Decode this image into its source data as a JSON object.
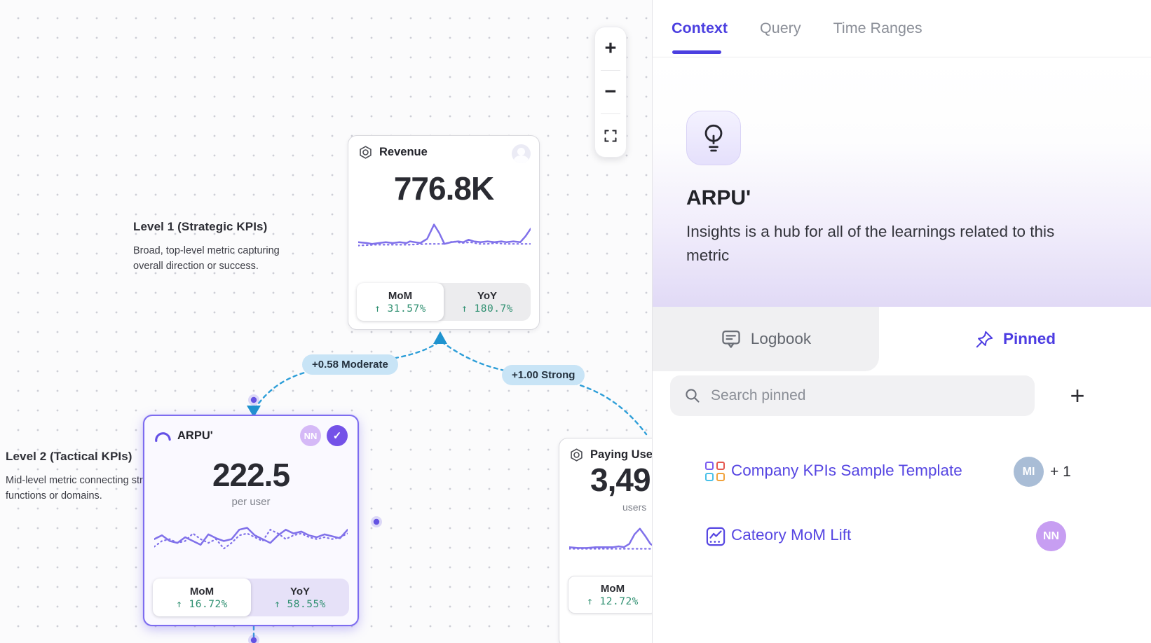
{
  "colors": {
    "accent_indigo": "#4b3fe0",
    "link_purple": "#5646e2",
    "sparkline_purple": "#8071ea",
    "edge_blue": "#2d9ed8",
    "edge_badge_bg": "#c8e4f6",
    "positive_green": "#2e8f70",
    "selected_card_border": "#7d6cf0"
  },
  "canvas": {
    "zoom_toolbar": {
      "zoom_in": "+",
      "zoom_out": "−",
      "fit_icon": "fullscreen-corners"
    },
    "levels": [
      {
        "title": "Level 1 (Strategic KPIs)",
        "description": "Broad, top-level metric capturing overall direction or success."
      },
      {
        "title": "Level 2 (Tactical KPIs)",
        "description": "Mid-level metric connecting strategy to functions or domains."
      }
    ],
    "edges": [
      {
        "label": "+0.58 Moderate"
      },
      {
        "label": "+1.00 Strong"
      }
    ],
    "cards": {
      "revenue": {
        "title": "Revenue",
        "value": "776.8K",
        "mom_label": "MoM",
        "mom_value": "↑ 31.57%",
        "yoy_label": "YoY",
        "yoy_value": "↑ 180.7%"
      },
      "arpu": {
        "title": "ARPU'",
        "value": "222.5",
        "unit": "per user",
        "owner_badge": "NN",
        "verified_icon": "✓",
        "mom_label": "MoM",
        "mom_value": "↑ 16.72%",
        "yoy_label": "YoY",
        "yoy_value": "↑ 58.55%"
      },
      "paying": {
        "title": "Paying Users'",
        "value": "3,49",
        "unit": "users",
        "mom_label": "MoM",
        "mom_value": "↑ 12.72%"
      }
    },
    "sparklines": {
      "revenue_solid": [
        [
          0,
          29
        ],
        [
          5,
          30
        ],
        [
          8,
          31
        ],
        [
          12,
          30
        ],
        [
          16,
          29
        ],
        [
          20,
          30
        ],
        [
          24,
          29
        ],
        [
          28,
          30
        ],
        [
          30,
          28
        ],
        [
          33,
          29
        ],
        [
          36,
          30
        ],
        [
          40,
          25
        ],
        [
          44,
          8
        ],
        [
          47,
          18
        ],
        [
          50,
          31
        ],
        [
          54,
          29
        ],
        [
          58,
          28
        ],
        [
          61,
          29
        ],
        [
          64,
          26
        ],
        [
          67,
          28
        ],
        [
          71,
          29
        ],
        [
          75,
          28
        ],
        [
          79,
          29
        ],
        [
          83,
          28
        ],
        [
          86,
          29
        ],
        [
          90,
          28
        ],
        [
          94,
          29
        ],
        [
          97,
          22
        ],
        [
          100,
          13
        ]
      ],
      "revenue_dotted": [
        [
          0,
          33
        ],
        [
          10,
          32
        ],
        [
          20,
          32
        ],
        [
          30,
          32
        ],
        [
          40,
          31
        ],
        [
          50,
          31
        ],
        [
          55,
          28
        ],
        [
          60,
          30
        ],
        [
          65,
          29
        ],
        [
          70,
          31
        ],
        [
          75,
          31
        ],
        [
          80,
          30
        ],
        [
          85,
          31
        ],
        [
          90,
          31
        ],
        [
          95,
          31
        ],
        [
          100,
          31
        ]
      ],
      "arpu_solid": [
        [
          0,
          22
        ],
        [
          4,
          18
        ],
        [
          8,
          24
        ],
        [
          12,
          26
        ],
        [
          16,
          20
        ],
        [
          20,
          24
        ],
        [
          24,
          28
        ],
        [
          28,
          17
        ],
        [
          32,
          21
        ],
        [
          36,
          24
        ],
        [
          40,
          22
        ],
        [
          44,
          12
        ],
        [
          48,
          10
        ],
        [
          52,
          18
        ],
        [
          56,
          22
        ],
        [
          60,
          26
        ],
        [
          64,
          18
        ],
        [
          68,
          12
        ],
        [
          72,
          16
        ],
        [
          76,
          14
        ],
        [
          80,
          18
        ],
        [
          84,
          20
        ],
        [
          88,
          17
        ],
        [
          92,
          19
        ],
        [
          96,
          21
        ],
        [
          100,
          12
        ]
      ],
      "arpu_dotted": [
        [
          0,
          30
        ],
        [
          4,
          24
        ],
        [
          8,
          22
        ],
        [
          12,
          26
        ],
        [
          16,
          24
        ],
        [
          20,
          16
        ],
        [
          24,
          22
        ],
        [
          28,
          26
        ],
        [
          32,
          22
        ],
        [
          36,
          32
        ],
        [
          40,
          26
        ],
        [
          44,
          18
        ],
        [
          48,
          16
        ],
        [
          52,
          20
        ],
        [
          56,
          24
        ],
        [
          60,
          12
        ],
        [
          64,
          16
        ],
        [
          68,
          22
        ],
        [
          72,
          18
        ],
        [
          76,
          16
        ],
        [
          80,
          20
        ],
        [
          84,
          22
        ],
        [
          88,
          20
        ],
        [
          92,
          22
        ],
        [
          96,
          20
        ],
        [
          100,
          16
        ]
      ],
      "paying_solid": [
        [
          0,
          28
        ],
        [
          5,
          29
        ],
        [
          10,
          29
        ],
        [
          15,
          28
        ],
        [
          20,
          28
        ],
        [
          25,
          28
        ],
        [
          28,
          27
        ],
        [
          31,
          28
        ],
        [
          34,
          24
        ],
        [
          37,
          12
        ],
        [
          40,
          5
        ],
        [
          43,
          14
        ],
        [
          46,
          24
        ],
        [
          49,
          28
        ],
        [
          55,
          28
        ],
        [
          65,
          27
        ],
        [
          75,
          28
        ],
        [
          85,
          28
        ],
        [
          100,
          28
        ]
      ],
      "paying_dotted": [
        [
          0,
          30
        ],
        [
          10,
          30
        ],
        [
          20,
          30
        ],
        [
          30,
          30
        ],
        [
          40,
          30
        ],
        [
          50,
          30
        ],
        [
          60,
          30
        ],
        [
          70,
          30
        ],
        [
          80,
          30
        ],
        [
          90,
          30
        ],
        [
          100,
          30
        ]
      ]
    }
  },
  "panel": {
    "tabs": [
      {
        "label": "Context",
        "active": true
      },
      {
        "label": "Query",
        "active": false
      },
      {
        "label": "Time Ranges",
        "active": false
      }
    ],
    "hero": {
      "title": "ARPU'",
      "description": "Insights is a hub for all of the learnings related to this metric"
    },
    "subtabs": [
      {
        "label": "Logbook",
        "active": false
      },
      {
        "label": "Pinned",
        "active": true
      }
    ],
    "search": {
      "placeholder": "Search pinned",
      "add_button": "+"
    },
    "pinned_items": [
      {
        "label": "Company KPIs Sample Template",
        "avatar": "MI",
        "extra": "+ 1"
      },
      {
        "label": "Cateory MoM Lift",
        "avatar": "NN"
      }
    ]
  }
}
